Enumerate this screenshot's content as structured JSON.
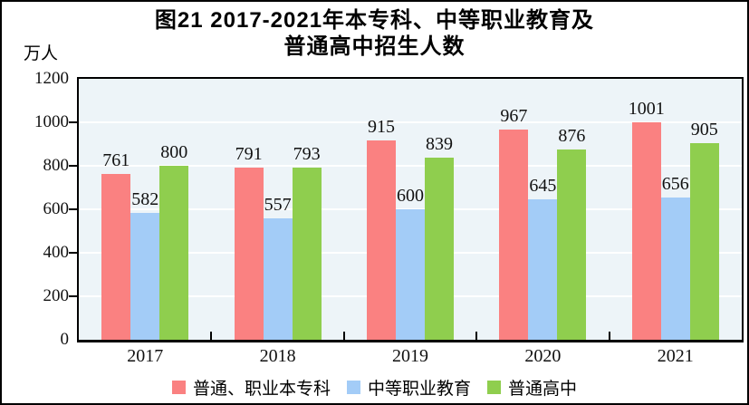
{
  "title": {
    "line1": "图21  2017-2021年本专科、中等职业教育及",
    "line2": "普通高中招生人数"
  },
  "y_axis": {
    "unit": "万人",
    "ticks": [
      0,
      200,
      400,
      600,
      800,
      1000,
      1200
    ]
  },
  "chart_data": {
    "type": "bar",
    "title": "图21 2017-2021年本专科、中等职业教育及普通高中招生人数",
    "categories": [
      "2017",
      "2018",
      "2019",
      "2020",
      "2021"
    ],
    "series": [
      {
        "name": "普通、职业本专科",
        "color": "#FA8181",
        "values": [
          761,
          791,
          915,
          967,
          1001
        ]
      },
      {
        "name": "中等职业教育",
        "color": "#A3CCF7",
        "values": [
          582,
          557,
          600,
          645,
          656
        ]
      },
      {
        "name": "普通高中",
        "color": "#8FCE4E",
        "values": [
          800,
          793,
          839,
          876,
          905
        ]
      }
    ],
    "xlabel": "",
    "ylabel": "万人",
    "ylim": [
      0,
      1200
    ],
    "yticks": [
      0,
      200,
      400,
      600,
      800,
      1000,
      1200
    ],
    "grid": true,
    "gridline_color": "#FFFFFF",
    "plot_background": "#EDF4F8",
    "legend_position": "bottom",
    "value_labels": true
  }
}
